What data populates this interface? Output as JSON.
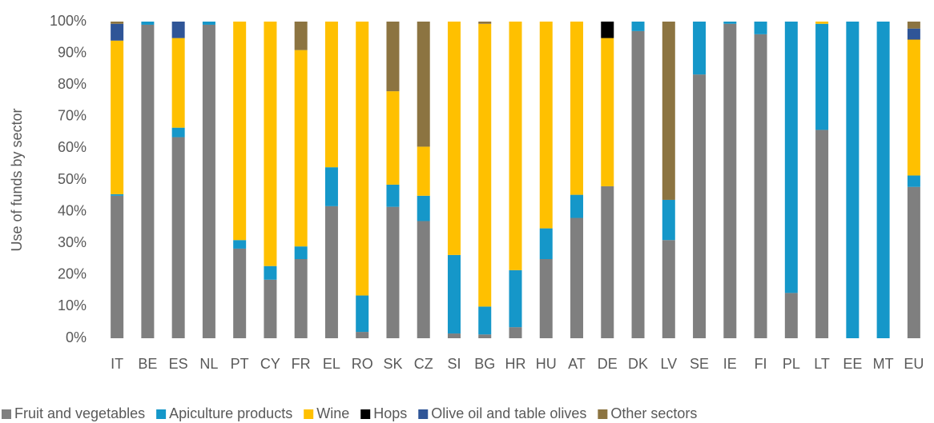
{
  "chart_data": {
    "type": "stacked_bar",
    "y_label": "Use of funds by sector",
    "categories": [
      "IT",
      "BE",
      "ES",
      "NL",
      "PT",
      "CY",
      "FR",
      "EL",
      "RO",
      "SK",
      "CZ",
      "SI",
      "BG",
      "HR",
      "HU",
      "AT",
      "DE",
      "DK",
      "LV",
      "SE",
      "IE",
      "FI",
      "PL",
      "LT",
      "EE",
      "MT",
      "EU"
    ],
    "ylim": [
      0,
      100
    ],
    "yticks": [
      {
        "value": 0,
        "label": "0%"
      },
      {
        "value": 10,
        "label": "10%"
      },
      {
        "value": 20,
        "label": "20%"
      },
      {
        "value": 30,
        "label": "30%"
      },
      {
        "value": 40,
        "label": "40%"
      },
      {
        "value": 50,
        "label": "50%"
      },
      {
        "value": 60,
        "label": "60%"
      },
      {
        "value": 70,
        "label": "70%"
      },
      {
        "value": 80,
        "label": "80%"
      },
      {
        "value": 90,
        "label": "90%"
      },
      {
        "value": 100,
        "label": "100%"
      }
    ],
    "grid": false,
    "legend_position": "bottom",
    "series": [
      {
        "name": "Fruit and vegetables",
        "color": "#7f7f7f",
        "values": [
          45,
          99,
          63.5,
          99,
          28.3,
          18.5,
          25,
          41.7,
          2,
          41.5,
          37,
          1.5,
          1.2,
          3.5,
          25,
          38,
          48,
          97,
          31,
          83.3,
          99.3,
          96,
          14.3,
          65.8,
          0,
          0,
          47.8
        ]
      },
      {
        "name": "Apiculture products",
        "color": "#1597c9",
        "values": [
          0.5,
          1,
          3,
          1,
          2.7,
          4.3,
          4,
          12.3,
          11.5,
          7,
          8,
          24.8,
          8.8,
          18,
          9.7,
          7.3,
          0,
          3,
          12.7,
          16.7,
          0.7,
          4,
          85.7,
          33.5,
          100,
          100,
          3.6
        ]
      },
      {
        "name": "Wine",
        "color": "#ffc000",
        "values": [
          48.5,
          0,
          28.3,
          0,
          69,
          77.2,
          62,
          46,
          86.5,
          29.5,
          15.5,
          73.7,
          89.3,
          78.5,
          65.3,
          54.7,
          46.8,
          0,
          0,
          0,
          0,
          0,
          0,
          0.7,
          0,
          0,
          42.9
        ]
      },
      {
        "name": "Hops",
        "color": "#000000",
        "values": [
          0,
          0,
          0,
          0,
          0,
          0,
          0,
          0,
          0,
          0,
          0,
          0,
          0,
          0,
          0,
          0,
          5.2,
          0,
          0,
          0,
          0,
          0,
          0,
          0,
          0,
          0,
          0.1
        ]
      },
      {
        "name": "Olive oil and table olives",
        "color": "#2f5597",
        "values": [
          5.3,
          0,
          5.2,
          0,
          0,
          0,
          0,
          0,
          0,
          0,
          0,
          0,
          0,
          0,
          0,
          0,
          0,
          0,
          0,
          0,
          0,
          0,
          0,
          0,
          0,
          0,
          3.4
        ]
      },
      {
        "name": "Other sectors",
        "color": "#8c7441",
        "values": [
          0.7,
          0,
          0,
          0,
          0,
          0,
          9,
          0,
          0,
          22,
          39.5,
          0,
          0.7,
          0,
          0,
          0,
          0,
          0,
          56.3,
          0,
          0,
          0,
          0,
          0,
          0,
          0,
          2.2
        ]
      }
    ]
  }
}
